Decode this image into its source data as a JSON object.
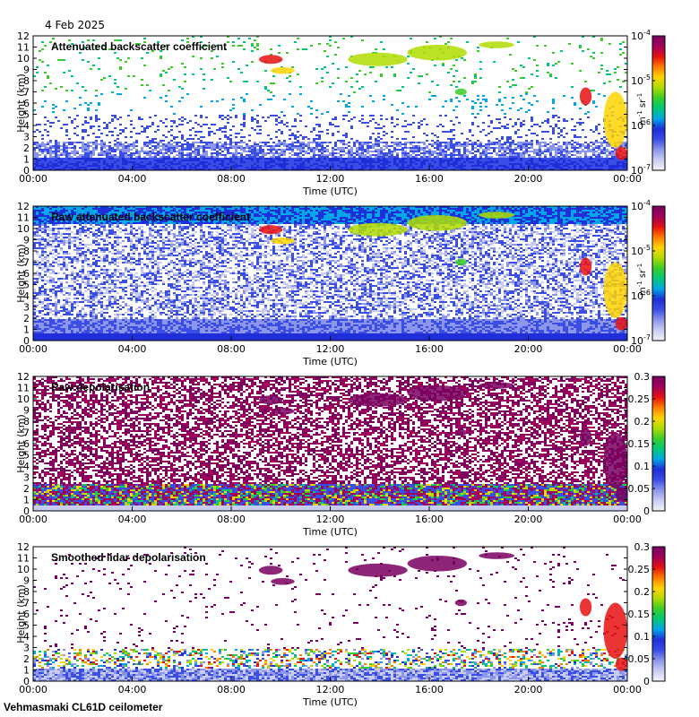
{
  "date_label": "4 Feb 2025",
  "footer_label": "Vehmasmaki CL61D ceilometer",
  "colors": {
    "background": "#ffffff",
    "axis": "#000000"
  },
  "colormap": [
    "#f4f4fb",
    "#c8ccf2",
    "#8c96ea",
    "#3a4ee6",
    "#1f2ed8",
    "#00a6e6",
    "#00c878",
    "#3ccc28",
    "#b0dc00",
    "#ffd400",
    "#ff7a00",
    "#e81010",
    "#a0005a",
    "#7a0060"
  ],
  "chart_data": [
    {
      "type": "heatmap",
      "title": "Attenuated backscatter coefficient",
      "xlabel": "Time (UTC)",
      "ylabel": "Height (km)",
      "x_ticks": [
        "00:00",
        "04:00",
        "08:00",
        "12:00",
        "16:00",
        "20:00",
        "00:00"
      ],
      "y_ticks": [
        0,
        1,
        2,
        3,
        4,
        5,
        6,
        7,
        8,
        9,
        10,
        11,
        12
      ],
      "ylim": [
        0,
        12
      ],
      "colorbar": {
        "scale": "log",
        "range": [
          1e-07,
          0.0001
        ],
        "tick_mantissa": [
          "10",
          "10",
          "10",
          "10"
        ],
        "tick_exponents": [
          "-7",
          "-6",
          "-5",
          "-4"
        ],
        "unit_base": [
          "m",
          "sr"
        ],
        "unit_exp": [
          "-1",
          "-1"
        ]
      },
      "style": "clean"
    },
    {
      "type": "heatmap",
      "title": "Raw attenuated backscatter coefficient",
      "xlabel": "Time (UTC)",
      "ylabel": "Height (km)",
      "x_ticks": [
        "00:00",
        "04:00",
        "08:00",
        "12:00",
        "16:00",
        "20:00",
        "00:00"
      ],
      "y_ticks": [
        0,
        1,
        2,
        3,
        4,
        5,
        6,
        7,
        8,
        9,
        10,
        11,
        12
      ],
      "ylim": [
        0,
        12
      ],
      "colorbar": {
        "scale": "log",
        "range": [
          1e-07,
          0.0001
        ],
        "tick_mantissa": [
          "10",
          "10",
          "10",
          "10"
        ],
        "tick_exponents": [
          "-7",
          "-6",
          "-5",
          "-4"
        ],
        "unit_base": [
          "m",
          "sr"
        ],
        "unit_exp": [
          "-1",
          "-1"
        ]
      },
      "style": "noisy"
    },
    {
      "type": "heatmap",
      "title": "Raw depolarisation",
      "xlabel": "Time (UTC)",
      "ylabel": "Height (km)",
      "x_ticks": [
        "00:00",
        "04:00",
        "08:00",
        "12:00",
        "16:00",
        "20:00",
        "00:00"
      ],
      "y_ticks": [
        0,
        1,
        2,
        3,
        4,
        5,
        6,
        7,
        8,
        9,
        10,
        11,
        12
      ],
      "ylim": [
        0,
        12
      ],
      "colorbar": {
        "scale": "linear",
        "range": [
          0,
          0.3
        ],
        "ticks": [
          "0",
          "0.05",
          "0.1",
          "0.15",
          "0.2",
          "0.25",
          "0.3"
        ]
      },
      "style": "depol_raw"
    },
    {
      "type": "heatmap",
      "title": "Smoothed lidar depolarisation",
      "xlabel": "Time (UTC)",
      "ylabel": "Height (km)",
      "x_ticks": [
        "00:00",
        "04:00",
        "08:00",
        "12:00",
        "16:00",
        "20:00",
        "00:00"
      ],
      "y_ticks": [
        0,
        1,
        2,
        3,
        4,
        5,
        6,
        7,
        8,
        9,
        10,
        11,
        12
      ],
      "ylim": [
        0,
        12
      ],
      "colorbar": {
        "scale": "linear",
        "range": [
          0,
          0.3
        ],
        "ticks": [
          "0",
          "0.05",
          "0.1",
          "0.15",
          "0.2",
          "0.25",
          "0.3"
        ]
      },
      "style": "depol_smooth"
    }
  ]
}
